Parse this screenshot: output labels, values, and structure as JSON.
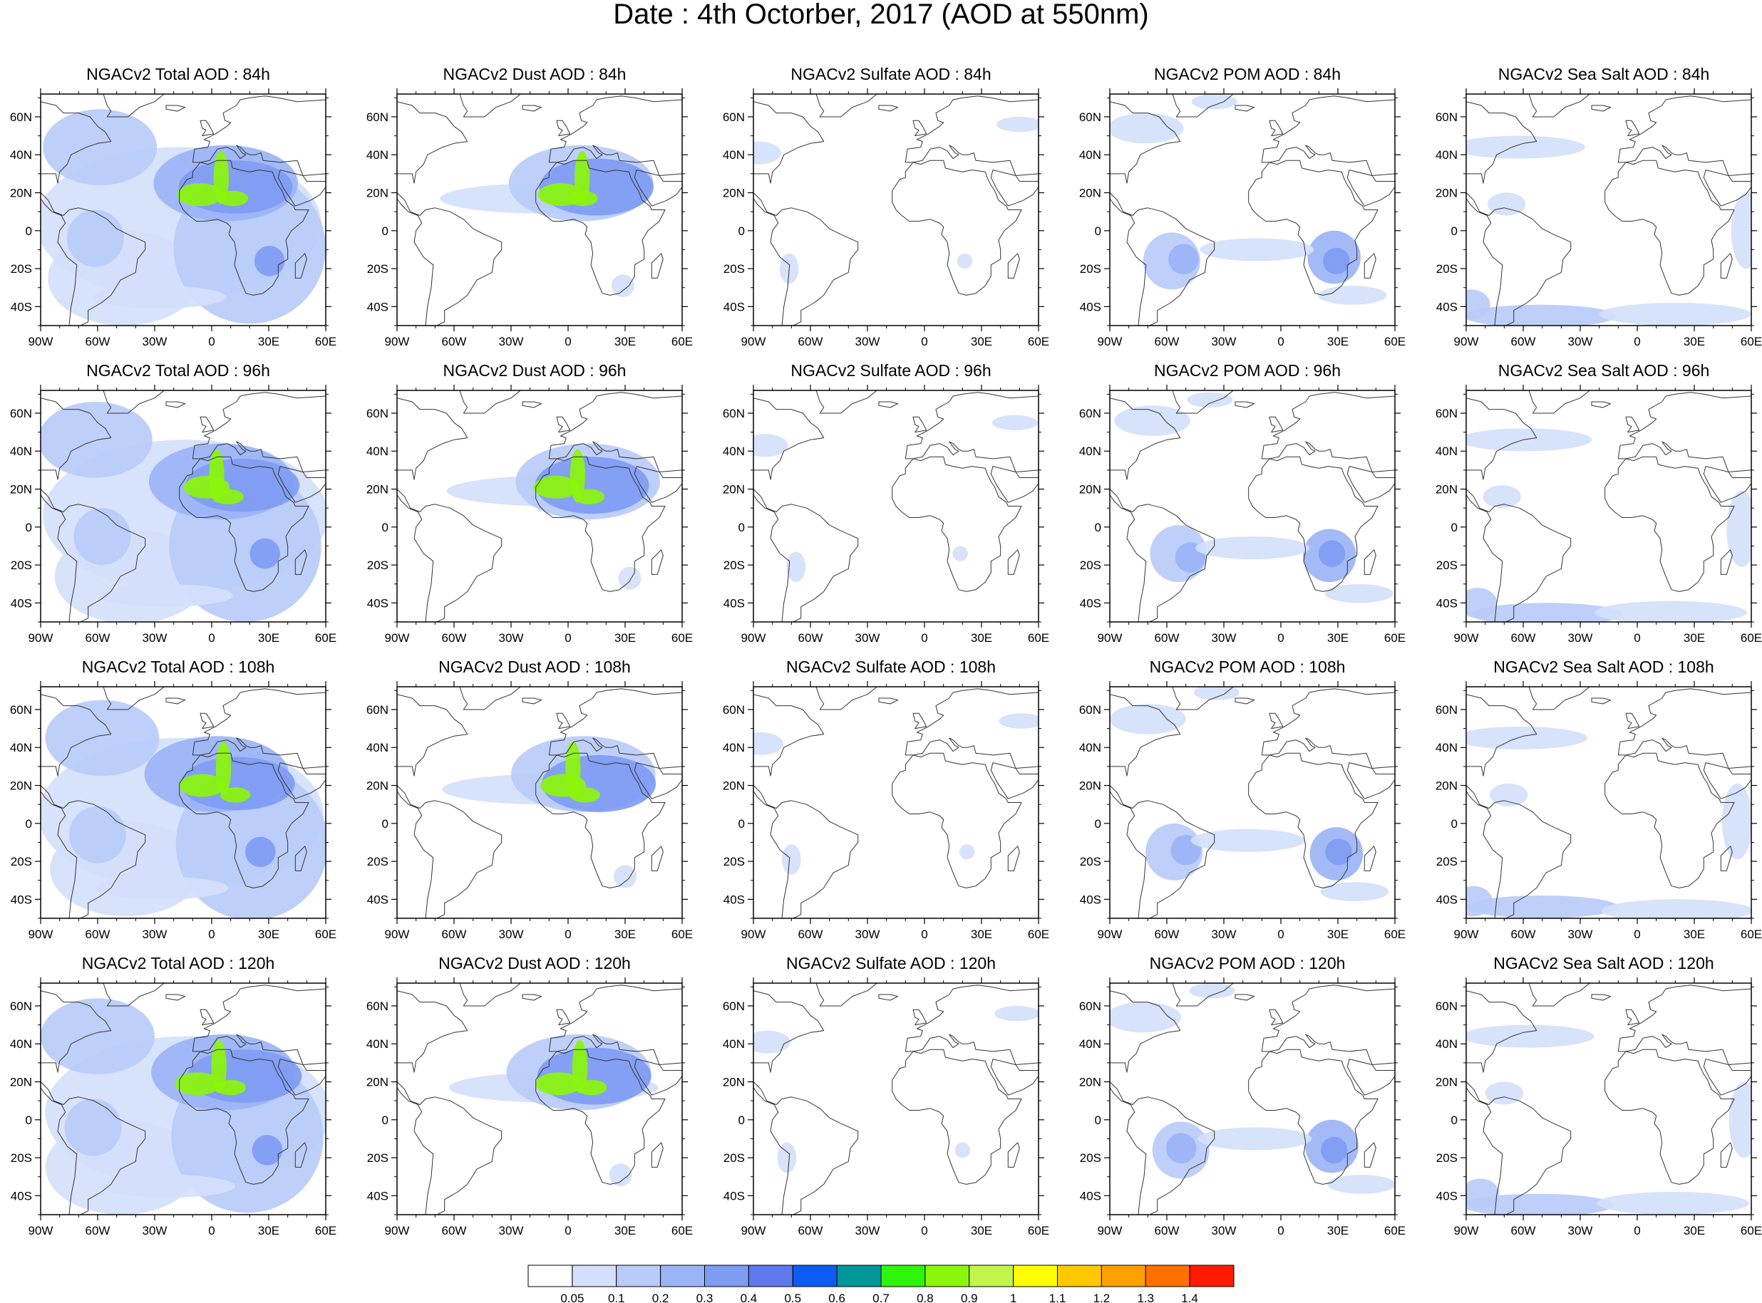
{
  "figure": {
    "title": "Date : 4th Octorber, 2017 (AOD at 550nm)"
  },
  "map_axes": {
    "lon_ticks": [
      "90W",
      "60W",
      "30W",
      "0",
      "30E",
      "60E"
    ],
    "lat_ticks": [
      "60N",
      "40N",
      "20N",
      "0",
      "20S",
      "40S"
    ]
  },
  "panel_rows": [
    [
      "NGACv2 Total AOD : 84h",
      "NGACv2 Dust AOD : 84h",
      "NGACv2 Sulfate AOD : 84h",
      "NGACv2 POM AOD : 84h",
      "NGACv2 Sea Salt AOD : 84h"
    ],
    [
      "NGACv2 Total AOD : 96h",
      "NGACv2 Dust AOD : 96h",
      "NGACv2 Sulfate AOD : 96h",
      "NGACv2 POM AOD : 96h",
      "NGACv2 Sea Salt AOD : 96h"
    ],
    [
      "NGACv2 Total AOD : 108h",
      "NGACv2 Dust AOD : 108h",
      "NGACv2 Sulfate AOD : 108h",
      "NGACv2 POM AOD : 108h",
      "NGACv2 Sea Salt AOD : 108h"
    ],
    [
      "NGACv2 Total AOD : 120h",
      "NGACv2 Dust AOD : 120h",
      "NGACv2 Sulfate AOD : 120h",
      "NGACv2 POM AOD : 120h",
      "NGACv2 Sea Salt  AOD : 120h"
    ]
  ],
  "colorbar": {
    "labels": [
      "0.05",
      "0.1",
      "0.2",
      "0.3",
      "0.4",
      "0.5",
      "0.6",
      "0.7",
      "0.8",
      "0.9",
      "1",
      "1.1",
      "1.2",
      "1.3",
      "1.4"
    ],
    "colors": [
      "#ffffff",
      "#d4e0fb",
      "#b8cbf9",
      "#9bb4f6",
      "#7f9cf3",
      "#5f78ee",
      "#0a5cf3",
      "#00969a",
      "#2ef50a",
      "#8bf50a",
      "#c2f54a",
      "#ffff00",
      "#ffc800",
      "#ffa000",
      "#ff7000",
      "#ff1a00"
    ]
  },
  "colors": {
    "ocean": "#ffffff",
    "coast": "#333333"
  }
}
